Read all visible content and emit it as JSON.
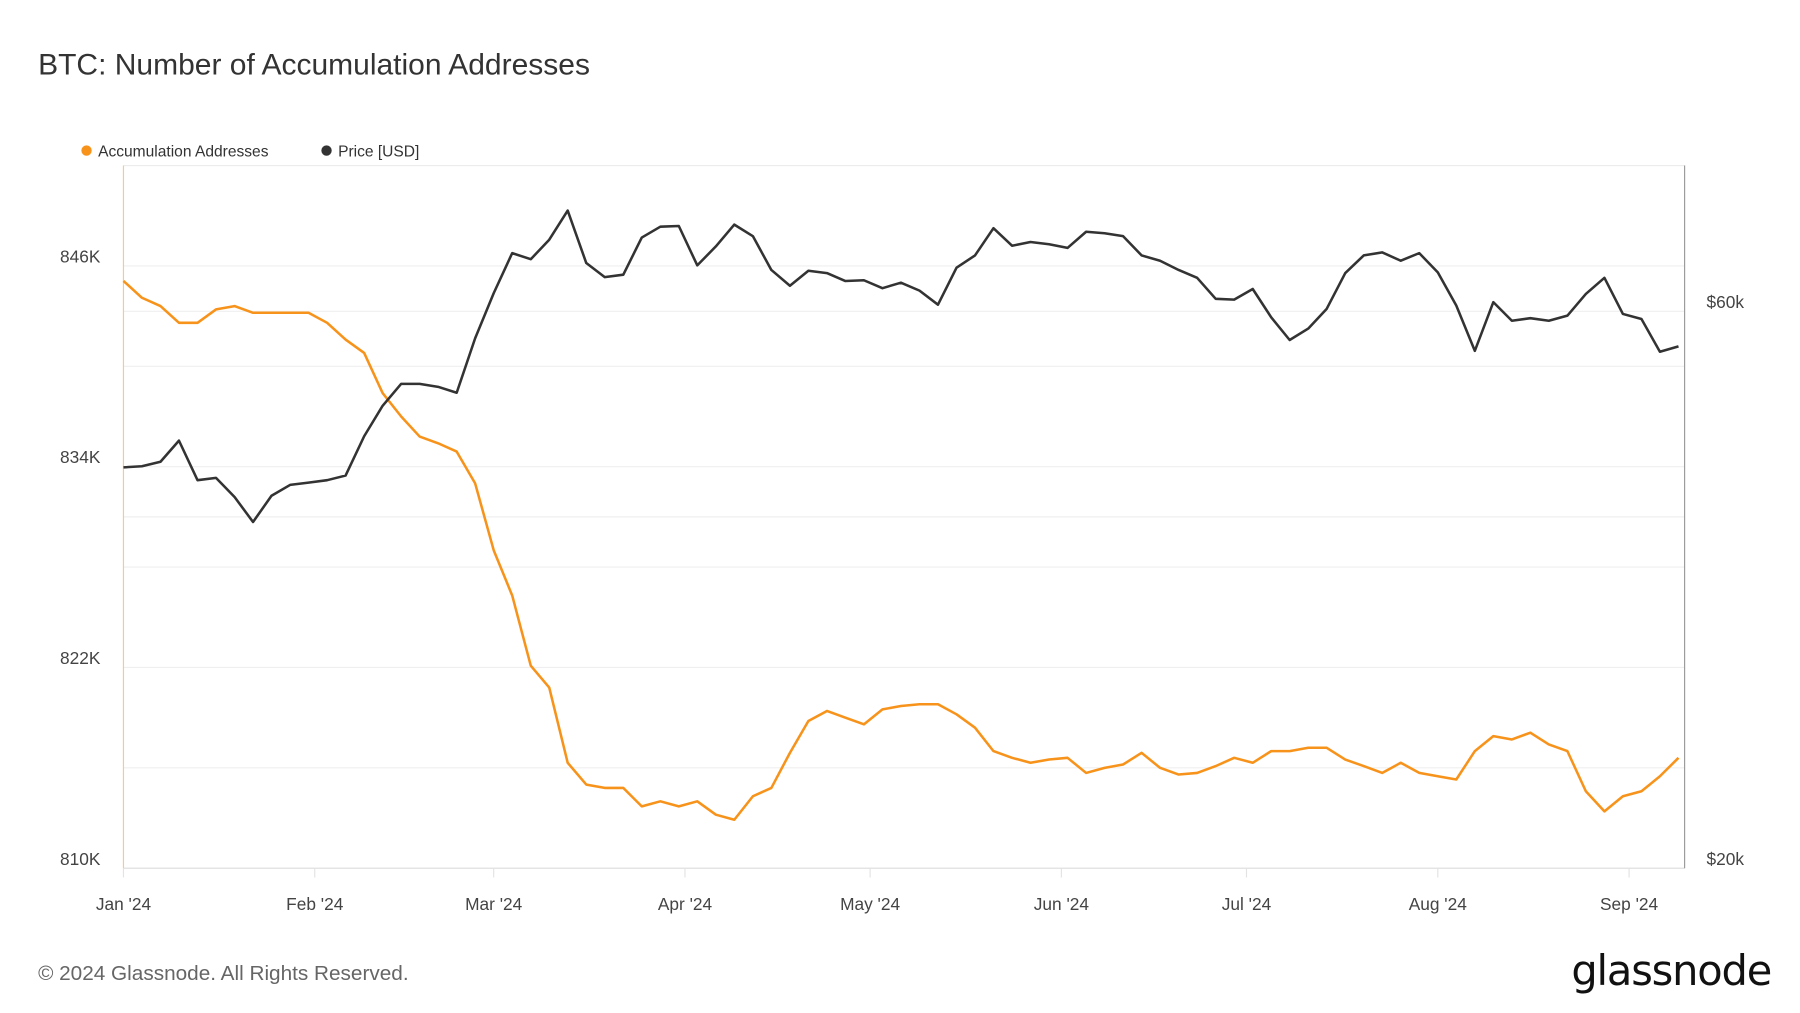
{
  "chart_data": {
    "type": "line",
    "title": "BTC: Number of Accumulation Addresses",
    "legend_placement": "top-left",
    "grid": true,
    "x_ticks": [
      "Jan '24",
      "Feb '24",
      "Mar '24",
      "Apr '24",
      "May '24",
      "Jun '24",
      "Jul '24",
      "Aug '24",
      "Sep '24"
    ],
    "x_tick_dates": [
      "2024-01-01",
      "2024-02-01",
      "2024-03-01",
      "2024-04-01",
      "2024-05-01",
      "2024-06-01",
      "2024-07-01",
      "2024-08-01",
      "2024-09-01"
    ],
    "xlim": [
      "2024-01-01",
      "2024-09-10"
    ],
    "y_left": {
      "ticks": [
        810000,
        822000,
        834000,
        846000
      ],
      "tick_labels": [
        "810K",
        "822K",
        "834K",
        "846K"
      ],
      "range": [
        810000,
        852000
      ],
      "scale": "linear"
    },
    "y_right": {
      "ticks": [
        20000,
        60000
      ],
      "tick_labels": [
        "$20k",
        "$60k"
      ],
      "range": [
        20000,
        80000
      ],
      "scale": "log"
    },
    "dates": [
      "2024-01-01",
      "2024-01-04",
      "2024-01-07",
      "2024-01-10",
      "2024-01-13",
      "2024-01-16",
      "2024-01-19",
      "2024-01-22",
      "2024-01-25",
      "2024-01-28",
      "2024-01-31",
      "2024-02-03",
      "2024-02-06",
      "2024-02-09",
      "2024-02-12",
      "2024-02-15",
      "2024-02-18",
      "2024-02-21",
      "2024-02-24",
      "2024-02-27",
      "2024-03-01",
      "2024-03-04",
      "2024-03-07",
      "2024-03-10",
      "2024-03-13",
      "2024-03-16",
      "2024-03-19",
      "2024-03-22",
      "2024-03-25",
      "2024-03-28",
      "2024-03-31",
      "2024-04-03",
      "2024-04-06",
      "2024-04-09",
      "2024-04-12",
      "2024-04-15",
      "2024-04-18",
      "2024-04-21",
      "2024-04-24",
      "2024-04-27",
      "2024-04-30",
      "2024-05-03",
      "2024-05-06",
      "2024-05-09",
      "2024-05-12",
      "2024-05-15",
      "2024-05-18",
      "2024-05-21",
      "2024-05-24",
      "2024-05-27",
      "2024-05-30",
      "2024-06-02",
      "2024-06-05",
      "2024-06-08",
      "2024-06-11",
      "2024-06-14",
      "2024-06-17",
      "2024-06-20",
      "2024-06-23",
      "2024-06-26",
      "2024-06-29",
      "2024-07-02",
      "2024-07-05",
      "2024-07-08",
      "2024-07-11",
      "2024-07-14",
      "2024-07-17",
      "2024-07-20",
      "2024-07-23",
      "2024-07-26",
      "2024-07-29",
      "2024-08-01",
      "2024-08-04",
      "2024-08-07",
      "2024-08-10",
      "2024-08-13",
      "2024-08-16",
      "2024-08-19",
      "2024-08-22",
      "2024-08-25",
      "2024-08-28",
      "2024-08-31",
      "2024-09-03",
      "2024-09-06",
      "2024-09-09"
    ],
    "series": [
      {
        "name": "Accumulation Addresses",
        "axis": "left",
        "color": "#F7931A",
        "values": [
          845100,
          844100,
          843600,
          842600,
          842600,
          843400,
          843600,
          843200,
          843200,
          843200,
          843200,
          842600,
          841600,
          840800,
          838400,
          837000,
          835800,
          835400,
          834900,
          833000,
          829000,
          826300,
          822100,
          820800,
          816300,
          815000,
          814800,
          814800,
          813700,
          814000,
          813700,
          814000,
          813200,
          812900,
          814300,
          814800,
          816900,
          818800,
          819400,
          819000,
          818600,
          819500,
          819700,
          819800,
          819800,
          819200,
          818400,
          817000,
          816600,
          816300,
          816500,
          816600,
          815700,
          816000,
          816200,
          816900,
          816000,
          815600,
          815700,
          816100,
          816600,
          816300,
          817000,
          817000,
          817200,
          817200,
          816500,
          816100,
          815700,
          816300,
          815700,
          815500,
          815300,
          817000,
          817900,
          817700,
          818100,
          817400,
          817000,
          814600,
          813400,
          814300,
          814600,
          815500,
          816600
        ]
      },
      {
        "name": "Price [USD]",
        "axis": "right",
        "color": "#333333",
        "values": [
          44100,
          44200,
          44600,
          46500,
          43000,
          43200,
          41600,
          39600,
          41700,
          42600,
          42800,
          43000,
          43400,
          46900,
          49800,
          52000,
          52000,
          51700,
          51100,
          56900,
          62200,
          67300,
          66500,
          69100,
          73200,
          66000,
          64200,
          64500,
          69400,
          70900,
          71000,
          65700,
          68200,
          71200,
          69600,
          65100,
          63100,
          65000,
          64700,
          63700,
          63800,
          62800,
          63500,
          62500,
          60800,
          65400,
          67000,
          70700,
          68300,
          68800,
          68500,
          68000,
          70200,
          70000,
          69600,
          67000,
          66300,
          65100,
          64100,
          61500,
          61400,
          62700,
          59300,
          56700,
          58000,
          60300,
          64700,
          67000,
          67400,
          66300,
          67300,
          64800,
          60700,
          55500,
          61100,
          58900,
          59200,
          58900,
          59500,
          62100,
          64100,
          59700,
          59100,
          55400,
          56000
        ]
      }
    ]
  },
  "footer": {
    "copyright": "© 2024 Glassnode. All Rights Reserved.",
    "logo": "glassnode"
  }
}
